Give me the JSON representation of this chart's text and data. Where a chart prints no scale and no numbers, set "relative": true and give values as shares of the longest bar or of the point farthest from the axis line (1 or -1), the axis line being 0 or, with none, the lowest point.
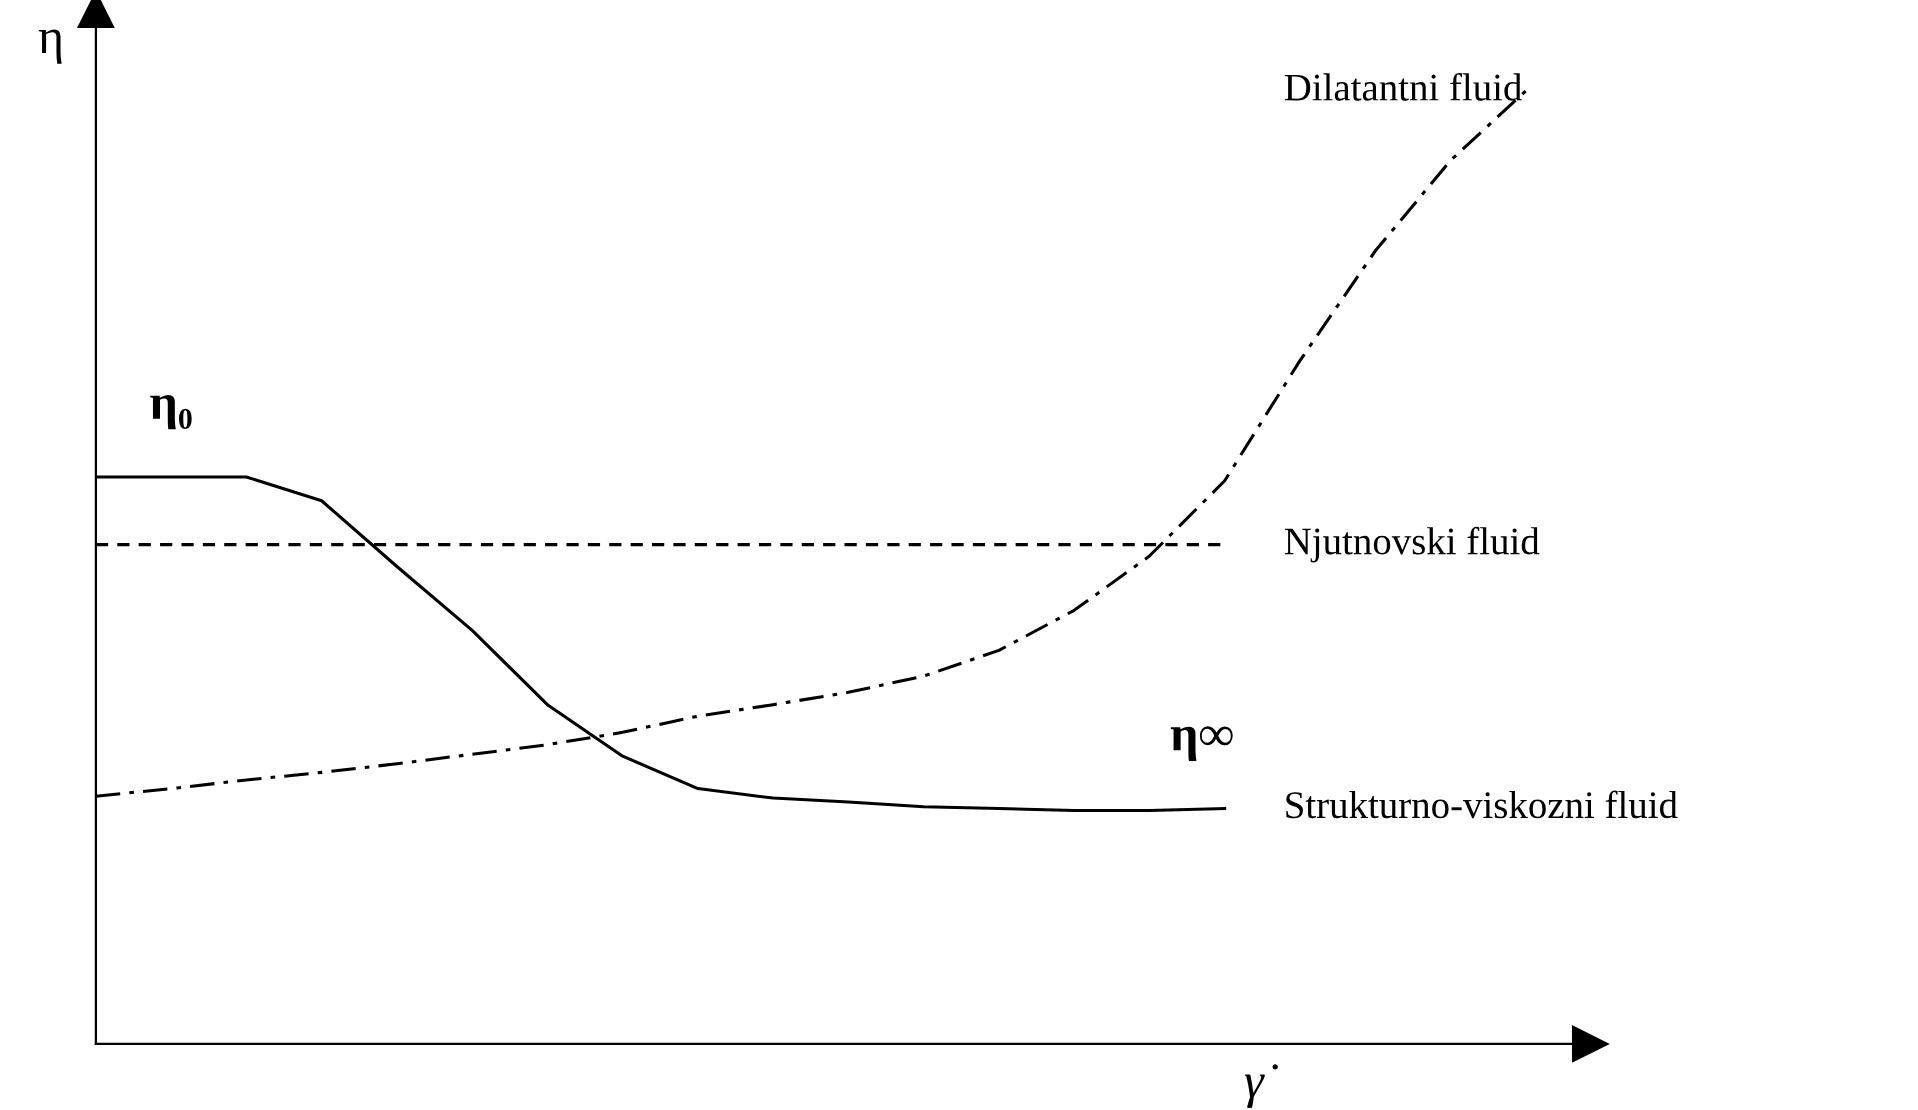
{
  "chart_data": {
    "type": "line",
    "relative": true,
    "xlabel": "γ̇",
    "ylabel": "η",
    "categories": [
      null,
      null,
      null,
      null,
      null,
      null,
      null,
      null,
      null,
      null,
      null,
      null,
      null,
      null,
      null,
      null,
      null,
      null,
      null,
      null
    ],
    "series": [
      {
        "name": "Dilatantni fluid",
        "color": "#000000",
        "line_style": "dashdot",
        "values": [
          0.26,
          0.268,
          0.277,
          0.285,
          0.294,
          0.304,
          0.314,
          0.327,
          0.344,
          0.356,
          0.369,
          0.386,
          0.413,
          0.455,
          0.512,
          0.591,
          0.717,
          0.832,
          0.927,
          1.0
        ]
      },
      {
        "name": "Njutnovski fluid",
        "color": "#000000",
        "line_style": "dashed",
        "values": [
          0.524,
          0.524,
          0.524,
          0.524,
          0.524,
          0.524,
          0.524,
          0.524,
          0.524,
          0.524,
          0.524,
          0.524,
          0.524,
          0.524,
          0.524,
          0.524,
          null,
          null,
          null,
          null
        ]
      },
      {
        "name": "Strukturno-viskozni fluid",
        "color": "#000000",
        "line_style": "solid",
        "values": [
          0.595,
          0.595,
          0.595,
          0.57,
          0.501,
          0.434,
          0.356,
          0.302,
          0.268,
          0.258,
          0.254,
          0.249,
          0.247,
          0.245,
          0.245,
          0.247,
          null,
          null,
          null,
          null
        ]
      }
    ],
    "annotations": [
      "η₀",
      "η∞"
    ],
    "marker": "none",
    "grid": false,
    "legend": false
  }
}
